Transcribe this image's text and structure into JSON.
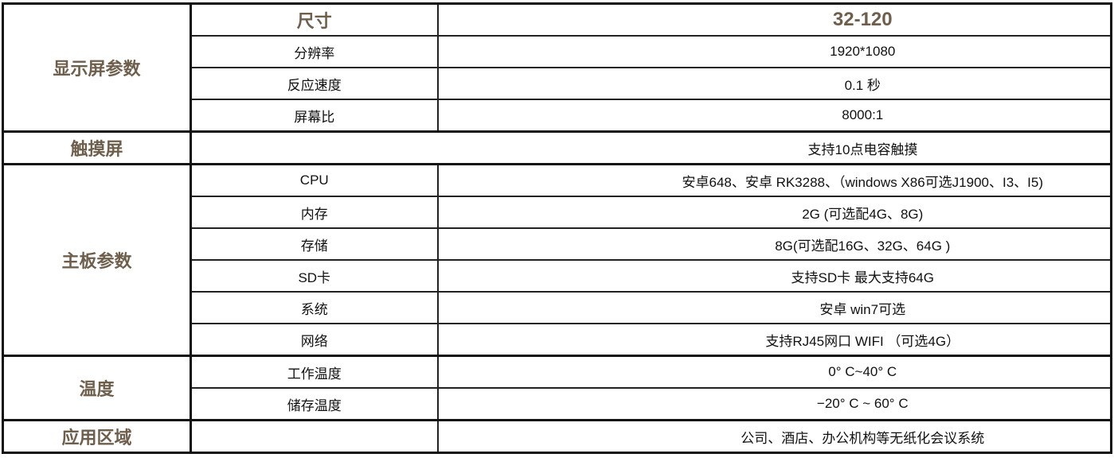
{
  "groups": [
    {
      "category": "显示屏参数",
      "rows": [
        {
          "label": "尺寸",
          "value": "32-120"
        },
        {
          "label": "分辨率",
          "value": "1920*1080"
        },
        {
          "label": "反应速度",
          "value": "0.1 秒"
        },
        {
          "label": "屏幕比",
          "value": "8000:1"
        }
      ]
    },
    {
      "category": "触摸屏",
      "value": "支持10点电容触摸"
    },
    {
      "category": "主板参数",
      "rows": [
        {
          "label": "CPU",
          "value": "安卓648、安卓 RK3288、（windows X86可选J1900、I3、I5)"
        },
        {
          "label": "内存",
          "value": "2G (可选配4G、8G)"
        },
        {
          "label": "存储",
          "value": "8G(可选配16G、32G、64G )"
        },
        {
          "label": "SD卡",
          "value": "支持SD卡 最大支持64G"
        },
        {
          "label": "系统",
          "value": "安卓  win7可选"
        },
        {
          "label": "网络",
          "value": "支持RJ45网口   WIFI （可选4G）"
        }
      ]
    },
    {
      "category": "温度",
      "rows": [
        {
          "label": "工作温度",
          "value": "0°  C~40°  C"
        },
        {
          "label": "储存温度",
          "value": "−20°  C ~ 60°  C"
        }
      ]
    },
    {
      "category": "应用区域",
      "label": "",
      "value": "公司、酒店、办公机构等无纸化会议系统"
    }
  ]
}
